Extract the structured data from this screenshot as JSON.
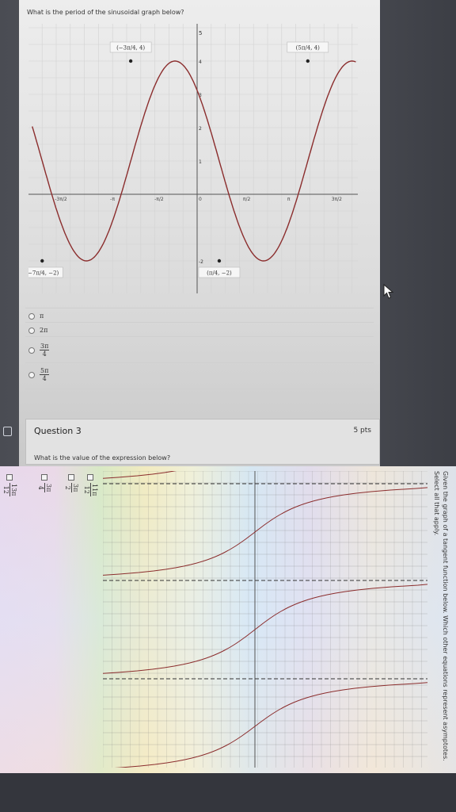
{
  "question2": {
    "prompt": "What is the period of the sinusoidal graph below?",
    "graph": {
      "y_top_label": "5",
      "y_tick_labels": [
        "4",
        "3",
        "2",
        "1",
        "-2"
      ],
      "x_tick_labels": [
        "-3π/2",
        "-π",
        "-π/2",
        "0",
        "π/2",
        "π",
        "3π/2"
      ],
      "points": [
        {
          "label": "(−3π/4, 4)",
          "x": -2.356,
          "y": 4
        },
        {
          "label": "(5π/4, 4)",
          "x": 3.927,
          "y": 4
        },
        {
          "label": "(−7π/4, −2)",
          "x": -5.498,
          "y": -2
        },
        {
          "label": "(π/4, −2)",
          "x": 0.785,
          "y": -2
        }
      ],
      "curve_color": "#8b2d2d"
    },
    "options": [
      {
        "text": "π"
      },
      {
        "text": "2π"
      },
      {
        "num": "3π",
        "den": "4"
      },
      {
        "num": "5π",
        "den": "4"
      }
    ]
  },
  "question3": {
    "title": "Question 3",
    "points": "5 pts",
    "prompt": "What is the value of the expression below?",
    "options": [
      {
        "num": "11π",
        "den": "12"
      },
      {
        "num": "3π",
        "den": "2"
      },
      {
        "num": "3π",
        "den": "4"
      },
      {
        "num": "13π",
        "den": "12"
      }
    ]
  },
  "question4": {
    "prompt": "Given the graph of a tangent function below. Which other equations represent asymptotes. Select all that apply."
  },
  "colors": {
    "curve": "#8b2d2d",
    "page": "#e6e6e6",
    "background": "#3b3d44"
  }
}
